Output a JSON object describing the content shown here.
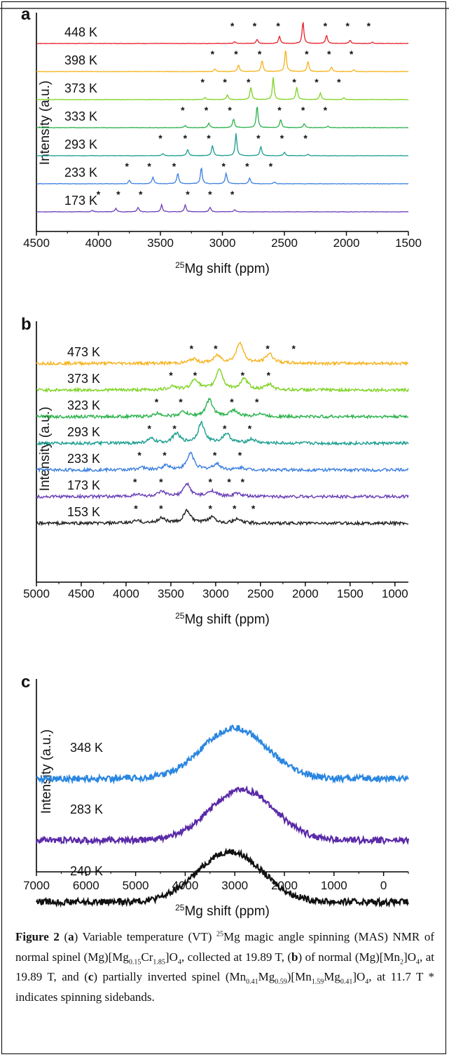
{
  "caption": {
    "label": "Figure 2",
    "html": "(<b>a</b>) Variable temperature (VT) <sup>25</sup>Mg magic angle spinning (MAS) NMR of normal spinel (Mg)[Mg<sub>0.15</sub>Cr<sub>1.85</sub>]O<sub>4</sub>, collected at 19.89 T, (<b>b</b>) of normal (Mg)[Mn<sub>2</sub>]O<sub>4</sub>, at 19.89 T, and (<b>c</b>) partially inverted spinel (Mn<sub>0.41</sub>Mg<sub>0.59</sub>)[Mn<sub>1.59</sub>Mg<sub>0.41</sub>]O<sub>4</sub>, at 11.7 T * indicates spinning sidebands."
  },
  "chart_data": [
    {
      "panel": "a",
      "type": "line",
      "xlabel_sup": "25",
      "xlabel": "Mg shift (ppm)",
      "ylabel": "Intensity (a.u.)",
      "xlim": [
        4500,
        1500
      ],
      "xticks": [
        4500,
        4000,
        3500,
        3000,
        2500,
        2000,
        1500
      ],
      "noise": 0.012,
      "peak_width": 8,
      "series": [
        {
          "name": "448 K",
          "color": "#e8202a",
          "peak": 2350,
          "peak_h": 1.0,
          "sidebands": [
            2900,
            2720,
            2540,
            2160,
            1970,
            1790
          ],
          "sideband_h": [
            0.08,
            0.18,
            0.32,
            0.38,
            0.15,
            0.06
          ],
          "stars": [
            2920,
            2740,
            2550,
            2170,
            1990,
            1820
          ]
        },
        {
          "name": "398 K",
          "color": "#f6b21b",
          "peak": 2490,
          "peak_h": 1.0,
          "sidebands": [
            3060,
            2870,
            2680,
            2310,
            2120,
            1940
          ],
          "sideband_h": [
            0.12,
            0.3,
            0.5,
            0.45,
            0.2,
            0.08
          ],
          "stars": [
            3080,
            2890,
            2700,
            2320,
            2140,
            1960
          ]
        },
        {
          "name": "373 K",
          "color": "#7ed321",
          "peak": 2590,
          "peak_h": 1.0,
          "sidebands": [
            3140,
            2960,
            2770,
            2400,
            2210,
            2020
          ],
          "sideband_h": [
            0.1,
            0.2,
            0.55,
            0.55,
            0.3,
            0.08
          ],
          "stars": [
            3160,
            2980,
            2790,
            2420,
            2240,
            2060
          ]
        },
        {
          "name": "333 K",
          "color": "#2ab24b",
          "peak": 2720,
          "peak_h": 1.0,
          "sidebands": [
            3300,
            3110,
            2910,
            2530,
            2340,
            2150
          ],
          "sideband_h": [
            0.1,
            0.2,
            0.4,
            0.38,
            0.18,
            0.07
          ],
          "stars": [
            3320,
            3130,
            2940,
            2540,
            2350,
            2170
          ]
        },
        {
          "name": "293 K",
          "color": "#1a9e8f",
          "peak": 2890,
          "peak_h": 1.0,
          "sidebands": [
            3480,
            3280,
            3080,
            2690,
            2500,
            2310
          ],
          "sideband_h": [
            0.1,
            0.28,
            0.45,
            0.4,
            0.15,
            0.06
          ],
          "stars": [
            3500,
            3300,
            3110,
            2710,
            2520,
            2330
          ]
        },
        {
          "name": "233 K",
          "color": "#3c7fe0",
          "peak": 3170,
          "peak_h": 0.75,
          "sidebands": [
            3750,
            3560,
            3360,
            2970,
            2780,
            2580
          ],
          "sideband_h": [
            0.15,
            0.3,
            0.48,
            0.48,
            0.25,
            0.08
          ],
          "stars": [
            3770,
            3590,
            3390,
            2990,
            2800,
            2610
          ]
        },
        {
          "name": "173 K",
          "color": "#6a3fb8",
          "peak": 3490,
          "peak_h": 0.32,
          "sidebands": [
            4050,
            3860,
            3680,
            3300,
            3100,
            2900
          ],
          "sideband_h": [
            0.07,
            0.15,
            0.2,
            0.3,
            0.2,
            0.1
          ],
          "stars": [
            4000,
            3840,
            3660,
            3280,
            3100,
            2920
          ]
        }
      ]
    },
    {
      "panel": "b",
      "type": "line",
      "xlabel_sup": "25",
      "xlabel": "Mg shift (ppm)",
      "ylabel": "Intensity (a.u.)",
      "xlim": [
        5000,
        850
      ],
      "xticks": [
        5000,
        4500,
        4000,
        3500,
        3000,
        2500,
        2000,
        1500,
        1000
      ],
      "noise": 0.09,
      "peak_width": 45,
      "series": [
        {
          "name": "473 K",
          "color": "#f6b21b",
          "peak": 2730,
          "peak_h": 1.0,
          "sidebands": [
            3250,
            2980,
            2400
          ],
          "sideband_h": [
            0.2,
            0.35,
            0.45
          ],
          "stars": [
            3270,
            3000,
            2420,
            2130
          ]
        },
        {
          "name": "373 K",
          "color": "#7ed321",
          "peak": 2960,
          "peak_h": 1.0,
          "sidebands": [
            3480,
            3230,
            2680,
            2400
          ],
          "sideband_h": [
            0.18,
            0.5,
            0.5,
            0.25
          ],
          "stars": [
            3500,
            3230,
            2700,
            2410
          ]
        },
        {
          "name": "323 K",
          "color": "#2ab24b",
          "peak": 3070,
          "peak_h": 0.8,
          "sidebands": [
            3640,
            3360,
            2800,
            2510
          ],
          "sideband_h": [
            0.15,
            0.22,
            0.3,
            0.15
          ],
          "stars": [
            3660,
            3390,
            2820,
            2540
          ]
        },
        {
          "name": "293 K",
          "color": "#1a9e8f",
          "peak": 3160,
          "peak_h": 0.95,
          "sidebands": [
            3720,
            3440,
            2880,
            2600
          ],
          "sideband_h": [
            0.2,
            0.45,
            0.45,
            0.18
          ],
          "stars": [
            3740,
            3460,
            2900,
            2620
          ]
        },
        {
          "name": "233 K",
          "color": "#3c7fe0",
          "peak": 3280,
          "peak_h": 0.8,
          "sidebands": [
            3830,
            3550,
            2990,
            2710
          ],
          "sideband_h": [
            0.12,
            0.22,
            0.28,
            0.1
          ],
          "stars": [
            3850,
            3570,
            3010,
            2730
          ]
        },
        {
          "name": "173 K",
          "color": "#6a3fb8",
          "peak": 3320,
          "peak_h": 0.6,
          "sidebands": [
            3880,
            3600,
            3040,
            2760
          ],
          "sideband_h": [
            0.12,
            0.22,
            0.28,
            0.15
          ],
          "stars": [
            3900,
            3610,
            3060,
            2850,
            2700
          ]
        },
        {
          "name": "153 K",
          "color": "#222222",
          "peak": 3320,
          "peak_h": 0.6,
          "sidebands": [
            3880,
            3600,
            3040,
            2760
          ],
          "sideband_h": [
            0.12,
            0.25,
            0.3,
            0.18
          ],
          "stars": [
            3890,
            3610,
            3060,
            2790,
            2580
          ]
        }
      ]
    },
    {
      "panel": "c",
      "type": "line",
      "xlabel_sup": "25",
      "xlabel": "Mg shift (ppm)",
      "ylabel": "Intensity (a.u.)",
      "xlim": [
        7000,
        -500
      ],
      "xticks": [
        7000,
        6000,
        5000,
        4000,
        3000,
        2000,
        1000,
        0
      ],
      "noise": 0.07,
      "peak_width": 650,
      "series": [
        {
          "name": "348 K",
          "color": "#2a86e0",
          "peak": 3000,
          "peak_h": 1.0,
          "sidebands": [],
          "sideband_h": [],
          "stars": []
        },
        {
          "name": "283 K",
          "color": "#5a2aa8",
          "peak": 2850,
          "peak_h": 1.0,
          "sidebands": [],
          "sideband_h": [],
          "stars": []
        },
        {
          "name": "240 K",
          "color": "#111111",
          "peak": 3100,
          "peak_h": 1.0,
          "sidebands": [],
          "sideband_h": [],
          "stars": []
        }
      ]
    }
  ]
}
